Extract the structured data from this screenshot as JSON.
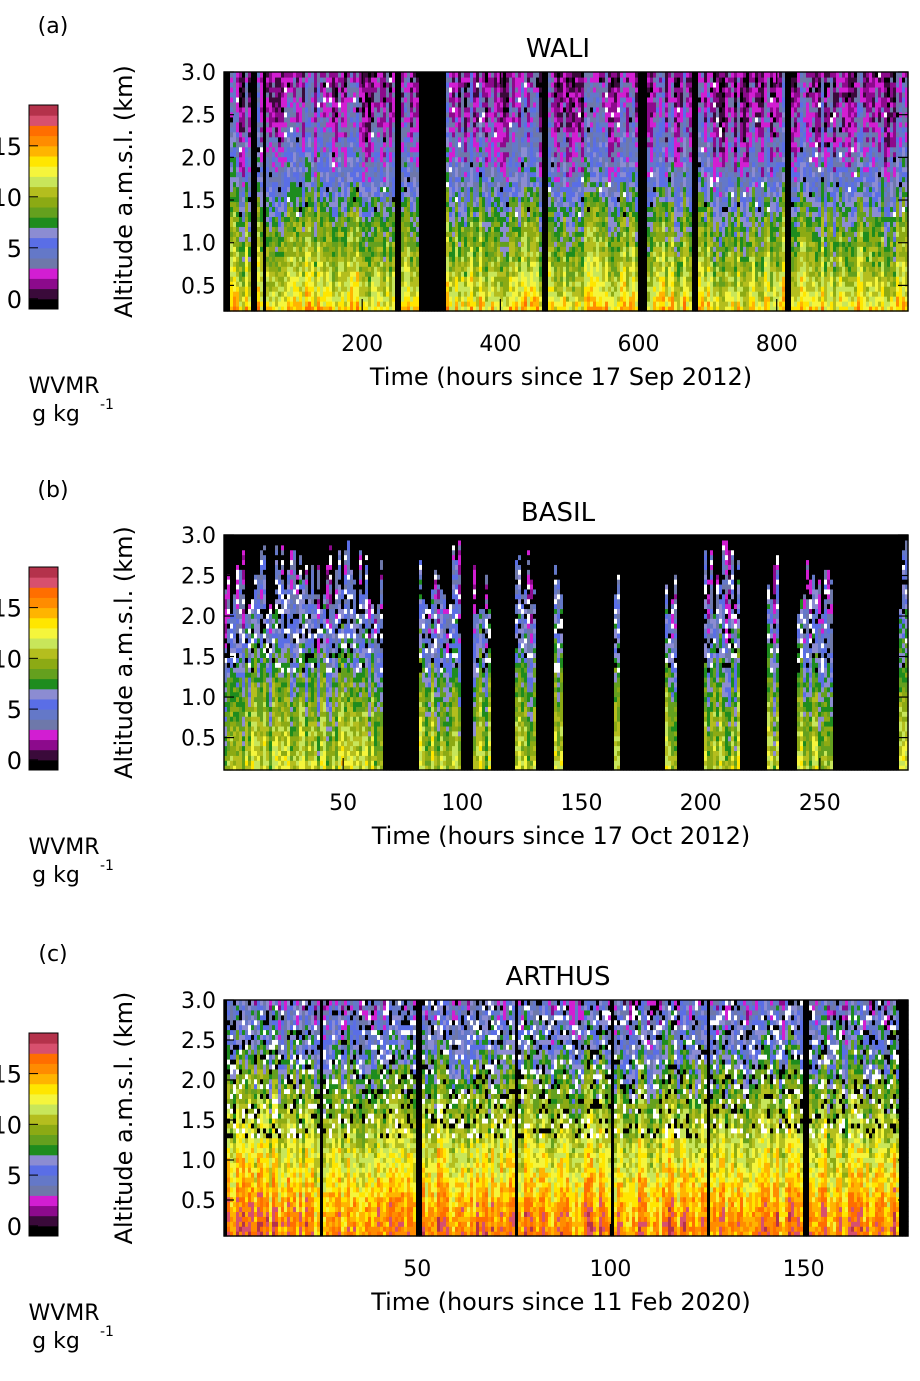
{
  "colorbar": {
    "levels": [
      -1,
      0,
      1,
      2,
      3,
      4,
      5,
      6,
      7,
      8,
      9,
      10,
      11,
      12,
      13,
      14,
      15,
      16,
      17,
      18
    ],
    "colors": [
      "#000000",
      "#3a0a3a",
      "#8c0a8c",
      "#d21ed2",
      "#6e78aa",
      "#6478c8",
      "#5a6ee6",
      "#8c8cd2",
      "#1e8c1e",
      "#64a01e",
      "#8caa14",
      "#b4be1e",
      "#c8e65a",
      "#f5f53c",
      "#ffe600",
      "#ffb400",
      "#ff8c00",
      "#ff6e00",
      "#d7506e",
      "#b4324b"
    ],
    "ticks": [
      0,
      5,
      10,
      15
    ],
    "tick_labels": [
      "0",
      "5",
      "10",
      "15"
    ],
    "label_line1": "WVMR",
    "label_line2": "g kg",
    "label_sup": "-1"
  },
  "chart_data": [
    {
      "type": "heatmap",
      "panel_label": "(a)",
      "title": "WALI",
      "xlabel": "Time (hours since 17 Sep 2012)",
      "ylabel": "Altitude a.m.s.l. (km)",
      "xlim": [
        0,
        990
      ],
      "ylim": [
        0.2,
        3.0
      ],
      "xticks": [
        200,
        400,
        600,
        800
      ],
      "xtick_labels": [
        "200",
        "400",
        "600",
        "800"
      ],
      "yticks": [
        0.5,
        1.0,
        1.5,
        2.0,
        2.5,
        3.0
      ],
      "ytick_labels": [
        "0.5",
        "1.0",
        "1.5",
        "2.0",
        "2.5",
        "3.0"
      ],
      "gaps_hours": [
        [
          0,
          8
        ],
        [
          40,
          48
        ],
        [
          58,
          62
        ],
        [
          246,
          250
        ],
        [
          252,
          258
        ],
        [
          282,
          320
        ],
        [
          462,
          468
        ],
        [
          598,
          614
        ],
        [
          676,
          684
        ],
        [
          814,
          822
        ]
      ],
      "profile": {
        "description_levels_km": [
          0.2,
          0.4,
          0.8,
          1.3,
          1.8,
          2.4,
          3.0
        ],
        "typical_wvmr_g_kg": [
          14,
          12,
          10,
          8,
          5,
          3,
          2
        ]
      }
    },
    {
      "type": "heatmap",
      "panel_label": "(b)",
      "title": "BASIL",
      "xlabel": "Time (hours since 17 Oct 2012)",
      "ylabel": "Altitude a.m.s.l. (km)",
      "xlim": [
        0,
        287
      ],
      "ylim": [
        0.1,
        3.0
      ],
      "xticks": [
        50,
        100,
        150,
        200,
        250
      ],
      "xtick_labels": [
        "50",
        "100",
        "150",
        "200",
        "250"
      ],
      "yticks": [
        0.5,
        1.0,
        1.5,
        2.0,
        2.5,
        3.0
      ],
      "ytick_labels": [
        "0.5",
        "1.0",
        "1.5",
        "2.0",
        "2.5",
        "3.0"
      ],
      "gaps_hours": [
        [
          67,
          82
        ],
        [
          100,
          105
        ],
        [
          112,
          122
        ],
        [
          131,
          139
        ],
        [
          142,
          164
        ],
        [
          166,
          185
        ],
        [
          190,
          202
        ],
        [
          216,
          228
        ],
        [
          233,
          240
        ],
        [
          256,
          283
        ]
      ],
      "profile": {
        "description_levels_km": [
          0.1,
          0.4,
          0.8,
          1.3,
          1.8,
          2.4,
          3.0
        ],
        "typical_wvmr_g_kg": [
          11,
          10,
          9,
          7,
          5,
          4,
          3
        ]
      }
    },
    {
      "type": "heatmap",
      "panel_label": "(c)",
      "title": "ARTHUS",
      "xlabel": "Time (hours since 11 Feb 2020)",
      "ylabel": "Altitude a.m.s.l. (km)",
      "xlim": [
        0,
        177
      ],
      "ylim": [
        0.05,
        3.0
      ],
      "xticks": [
        50,
        100,
        150
      ],
      "xtick_labels": [
        "50",
        "100",
        "150"
      ],
      "yticks": [
        0.5,
        1.0,
        1.5,
        2.0,
        2.5,
        3.0
      ],
      "ytick_labels": [
        "0.5",
        "1.0",
        "1.5",
        "2.0",
        "2.5",
        "3.0"
      ],
      "gaps_hours": [
        [
          0,
          1
        ],
        [
          25,
          26
        ],
        [
          50,
          51
        ],
        [
          75,
          76
        ],
        [
          100,
          101
        ],
        [
          125,
          126
        ],
        [
          150,
          151
        ],
        [
          175,
          177
        ]
      ],
      "profile": {
        "description_levels_km": [
          0.05,
          0.4,
          0.8,
          1.3,
          1.8,
          2.4,
          3.0
        ],
        "typical_wvmr_g_kg": [
          16,
          15,
          13,
          11,
          9,
          6,
          4
        ]
      }
    }
  ]
}
